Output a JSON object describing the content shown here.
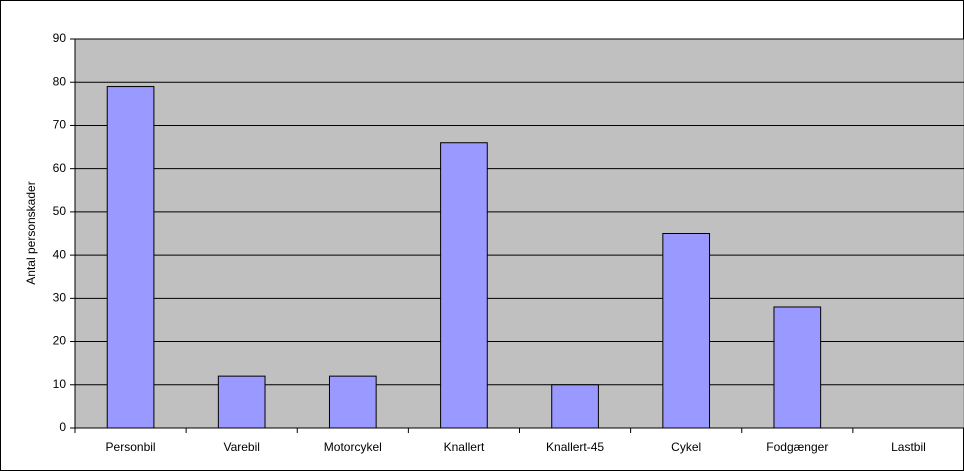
{
  "chart_data": {
    "type": "bar",
    "y_label": "Antal personskader",
    "categories": [
      "Personbil",
      "Varebil",
      "Motorcykel",
      "Knallert",
      "Knallert-45",
      "Cykel",
      "Fodgænger",
      "Lastbil"
    ],
    "values": [
      79,
      12,
      12,
      66,
      10,
      45,
      28,
      0
    ],
    "color": "#9999ff",
    "ylim": [
      0,
      90
    ],
    "yticks": [
      0,
      10,
      20,
      30,
      40,
      50,
      60,
      70,
      80,
      90
    ],
    "grid": true
  }
}
